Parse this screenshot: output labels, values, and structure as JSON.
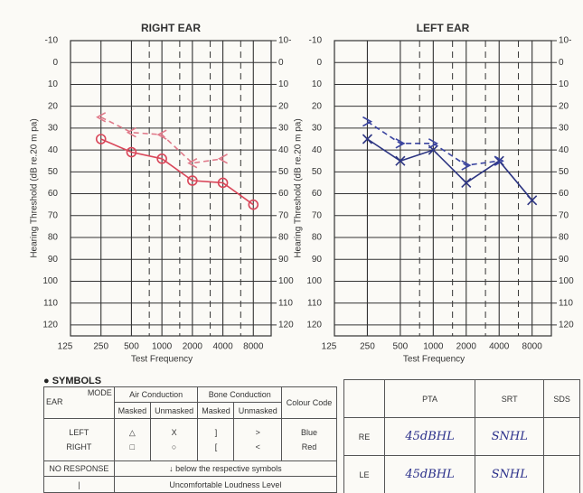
{
  "chart_data": [
    {
      "type": "line",
      "title": "RIGHT EAR",
      "ylabel": "Hearing Threshold (dB re.20 m pa)",
      "xlabel": "Test Frequency",
      "log_x": true,
      "invert_y": true,
      "x": [
        250,
        500,
        1000,
        2000,
        4000,
        8000
      ],
      "xlim": [
        125,
        12000
      ],
      "xticks": [
        125,
        250,
        500,
        1000,
        2000,
        4000,
        8000
      ],
      "minor_xticks": [
        750,
        1500,
        3000,
        6000
      ],
      "ylim": [
        -10,
        125
      ],
      "yticks": [
        -10,
        0,
        10,
        20,
        30,
        40,
        50,
        60,
        70,
        80,
        90,
        100,
        110,
        120
      ],
      "y2ticks": [
        {
          "value": -10,
          "label": "10-"
        },
        0,
        10,
        20,
        30,
        40,
        50,
        60,
        70,
        80,
        90,
        100,
        110,
        120
      ],
      "series": [
        {
          "name": "Air Conduction",
          "color": "#d9475a",
          "marker": "o",
          "dash": false,
          "values": [
            35,
            41,
            44,
            54,
            55,
            65
          ]
        },
        {
          "name": "Bone Conduction",
          "color": "#e07a8a",
          "marker": "<",
          "dash": true,
          "values": [
            25,
            32,
            33,
            46,
            44,
            null
          ]
        }
      ]
    },
    {
      "type": "line",
      "title": "LEFT EAR",
      "ylabel": "Hearing Threshold (dB re.20 m pa)",
      "xlabel": "Test Frequency",
      "log_x": true,
      "invert_y": true,
      "x": [
        250,
        500,
        1000,
        2000,
        4000,
        8000
      ],
      "xlim": [
        125,
        12000
      ],
      "xticks": [
        125,
        250,
        500,
        1000,
        2000,
        4000,
        8000
      ],
      "minor_xticks": [
        750,
        1500,
        3000,
        6000
      ],
      "ylim": [
        -10,
        125
      ],
      "yticks": [
        -10,
        0,
        10,
        20,
        30,
        40,
        50,
        60,
        70,
        80,
        90,
        100,
        110,
        120
      ],
      "y2ticks": [
        {
          "value": -10,
          "label": "10-"
        },
        0,
        10,
        20,
        30,
        40,
        50,
        60,
        70,
        80,
        90,
        100,
        110,
        120
      ],
      "series": [
        {
          "name": "Air Conduction",
          "color": "#2d3582",
          "marker": "x",
          "dash": false,
          "values": [
            35,
            45,
            40,
            55,
            45,
            63
          ]
        },
        {
          "name": "Bone Conduction",
          "color": "#3a44a0",
          "marker": ">",
          "dash": true,
          "values": [
            27,
            37,
            37,
            47,
            45,
            null
          ]
        }
      ]
    }
  ],
  "symbols": {
    "title": "SYMBOLS",
    "mode": "MODE",
    "ear": "EAR",
    "air": "Air Conduction",
    "bone": "Bone Conduction",
    "colour": "Colour Code",
    "sub": [
      "Masked",
      "Unmasked",
      "Masked",
      "Unmasked"
    ],
    "rows": [
      [
        "LEFT",
        "△",
        "X",
        "]",
        ">",
        "Blue"
      ],
      [
        "RIGHT",
        "□",
        "○",
        "[",
        "<",
        "Red"
      ]
    ],
    "no_response": [
      "NO RESPONSE",
      "↓ below the respective symbols"
    ],
    "ucl": "Uncomfortable Loudness Level"
  },
  "results": {
    "columns": [
      "PTA",
      "SRT",
      "SDS"
    ],
    "rows": [
      {
        "ear": "RE",
        "pta": "45dBHL",
        "srt": "SNHL"
      },
      {
        "ear": "LE",
        "pta": "45dBHL",
        "srt": "SNHL"
      }
    ]
  }
}
